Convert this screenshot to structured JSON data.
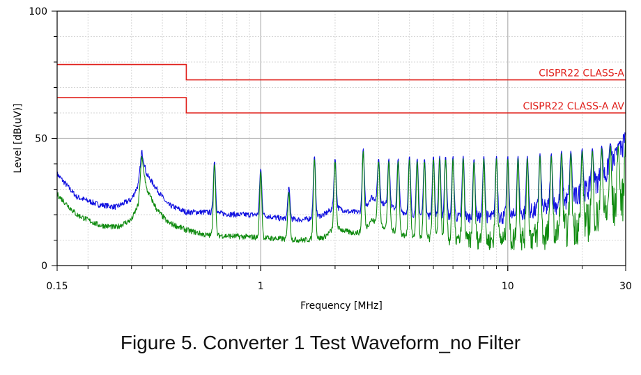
{
  "caption": "Figure 5. Converter 1 Test Waveform_no Filter",
  "chart_data": {
    "type": "line",
    "title": "",
    "xlabel": "Frequency [MHz]",
    "ylabel": "Level [dB(uV)]",
    "xscale": "log",
    "xlim": [
      0.15,
      30
    ],
    "ylim": [
      0,
      100
    ],
    "x_tick_labels": [
      {
        "value": 0.15,
        "label": "0.15"
      },
      {
        "value": 1,
        "label": "1"
      },
      {
        "value": 10,
        "label": "10"
      },
      {
        "value": 30,
        "label": "30"
      }
    ],
    "y_tick_labels": [
      {
        "value": 0,
        "label": "0"
      },
      {
        "value": 50,
        "label": "50"
      },
      {
        "value": 100,
        "label": "100"
      }
    ],
    "grid": true,
    "limit_lines": [
      {
        "name": "CISPR22 CLASS-A",
        "color": "#e0201b",
        "points": [
          [
            0.15,
            79
          ],
          [
            0.5,
            79
          ],
          [
            0.5,
            73
          ],
          [
            30,
            73
          ]
        ]
      },
      {
        "name": "CISPR22 CLASS-A AV",
        "color": "#e0201b",
        "points": [
          [
            0.15,
            66
          ],
          [
            0.5,
            66
          ],
          [
            0.5,
            60
          ],
          [
            30,
            60
          ]
        ]
      }
    ],
    "series": [
      {
        "color": "#1010e0",
        "baseline": [
          [
            0.15,
            36
          ],
          [
            0.18,
            27
          ],
          [
            0.22,
            24
          ],
          [
            0.26,
            23
          ],
          [
            0.3,
            26
          ],
          [
            0.32,
            32
          ],
          [
            0.33,
            45
          ],
          [
            0.345,
            36
          ],
          [
            0.38,
            30
          ],
          [
            0.42,
            24
          ],
          [
            0.5,
            21
          ],
          [
            0.6,
            21
          ],
          [
            0.8,
            20
          ],
          [
            1.0,
            20
          ],
          [
            1.2,
            18.5
          ],
          [
            1.5,
            18
          ],
          [
            1.8,
            20
          ],
          [
            2.0,
            23
          ],
          [
            2.3,
            21
          ],
          [
            2.6,
            21
          ],
          [
            2.8,
            27
          ],
          [
            3.2,
            24
          ],
          [
            4,
            20
          ],
          [
            6,
            19
          ],
          [
            10,
            19
          ],
          [
            15,
            23
          ],
          [
            20,
            28
          ],
          [
            25,
            36
          ],
          [
            30,
            48
          ]
        ],
        "peaks": [
          [
            0.65,
            41
          ],
          [
            1.0,
            38
          ],
          [
            1.3,
            31
          ],
          [
            1.65,
            43
          ],
          [
            2.0,
            42
          ],
          [
            2.6,
            46
          ],
          [
            3.0,
            42
          ],
          [
            3.3,
            42
          ],
          [
            3.6,
            42
          ],
          [
            4.0,
            43
          ],
          [
            4.3,
            42
          ],
          [
            4.6,
            42
          ],
          [
            5.0,
            43
          ],
          [
            5.3,
            43
          ],
          [
            5.6,
            43
          ],
          [
            6.0,
            43
          ],
          [
            6.6,
            43
          ],
          [
            7.3,
            42
          ],
          [
            8.0,
            43
          ],
          [
            9.0,
            43
          ],
          [
            10.0,
            43
          ],
          [
            11,
            43
          ],
          [
            12,
            43
          ],
          [
            13.5,
            44
          ],
          [
            15,
            44
          ],
          [
            16.5,
            45
          ],
          [
            18,
            45
          ],
          [
            20,
            46
          ],
          [
            22,
            46
          ],
          [
            24,
            47
          ],
          [
            26,
            48
          ],
          [
            28,
            48
          ],
          [
            30,
            52
          ]
        ]
      },
      {
        "color": "#0e8a0e",
        "baseline": [
          [
            0.15,
            28
          ],
          [
            0.18,
            20
          ],
          [
            0.22,
            16
          ],
          [
            0.26,
            15
          ],
          [
            0.3,
            18
          ],
          [
            0.32,
            24
          ],
          [
            0.33,
            43
          ],
          [
            0.345,
            30
          ],
          [
            0.38,
            22
          ],
          [
            0.42,
            17
          ],
          [
            0.5,
            14
          ],
          [
            0.6,
            12
          ],
          [
            0.8,
            11.5
          ],
          [
            1.0,
            11
          ],
          [
            1.2,
            10.5
          ],
          [
            1.5,
            10
          ],
          [
            1.8,
            11
          ],
          [
            2.0,
            15
          ],
          [
            2.3,
            13
          ],
          [
            2.6,
            13
          ],
          [
            2.8,
            18
          ],
          [
            3.2,
            15
          ],
          [
            4,
            11
          ],
          [
            6,
            10
          ],
          [
            10,
            10
          ],
          [
            15,
            12
          ],
          [
            20,
            16
          ],
          [
            25,
            20
          ],
          [
            30,
            26
          ]
        ],
        "peaks": [
          [
            0.65,
            40
          ],
          [
            1.0,
            37
          ],
          [
            1.3,
            29
          ],
          [
            1.65,
            42
          ],
          [
            2.0,
            41
          ],
          [
            2.6,
            45
          ],
          [
            3.0,
            41
          ],
          [
            3.3,
            41
          ],
          [
            3.6,
            41
          ],
          [
            4.0,
            42
          ],
          [
            4.3,
            41
          ],
          [
            4.6,
            41
          ],
          [
            5.0,
            42
          ],
          [
            5.3,
            42
          ],
          [
            5.6,
            42
          ],
          [
            6.0,
            42
          ],
          [
            6.6,
            42
          ],
          [
            7.3,
            41
          ],
          [
            8.0,
            42
          ],
          [
            9.0,
            42
          ],
          [
            10.0,
            42
          ],
          [
            11,
            42
          ],
          [
            12,
            42
          ],
          [
            13.5,
            43
          ],
          [
            15,
            43
          ],
          [
            16.5,
            44
          ],
          [
            18,
            44
          ],
          [
            20,
            45
          ],
          [
            22,
            45
          ],
          [
            24,
            46
          ],
          [
            26,
            47
          ],
          [
            28,
            47
          ],
          [
            30,
            50
          ]
        ]
      }
    ]
  }
}
